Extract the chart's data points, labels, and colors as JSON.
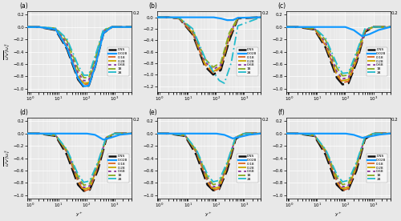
{
  "panels": [
    {
      "label": "(a)",
      "ylim": [
        -1.05,
        0.25
      ]
    },
    {
      "label": "(b)",
      "ylim": [
        -1.3,
        0.1
      ]
    },
    {
      "label": "(c)",
      "ylim": [
        -1.05,
        0.25
      ]
    },
    {
      "label": "(d)",
      "ylim": [
        -1.05,
        0.25
      ]
    },
    {
      "label": "(e)",
      "ylim": [
        -1.05,
        0.25
      ]
    },
    {
      "label": "(f)",
      "ylim": [
        -1.05,
        0.25
      ]
    }
  ],
  "series_labels": [
    "DNS",
    "0.028",
    "0.18",
    "0.28",
    "0.68",
    "18",
    "28"
  ],
  "series_colors": [
    "#111111",
    "#1199ff",
    "#dd6622",
    "#ccaa00",
    "#883399",
    "#88aa22",
    "#22bbcc"
  ],
  "series_styles": [
    "--",
    "-",
    "--",
    "-.",
    ":",
    "--",
    "-."
  ],
  "series_dashes": [
    [
      6,
      2
    ],
    [],
    [
      5,
      2
    ],
    [
      6,
      2,
      2,
      2
    ],
    [
      2,
      2
    ],
    [
      5,
      2
    ],
    [
      6,
      2,
      1,
      2
    ]
  ],
  "series_lw": [
    1.8,
    1.6,
    1.3,
    1.3,
    1.3,
    1.3,
    1.3
  ],
  "xlim": [
    0.8,
    4000
  ],
  "ylabel": "$\\overline{u'v'}/u_\\tau^2$",
  "xlabel": "$y^+$",
  "bg_color": "#e8e8e8",
  "grid_color": "#ffffff",
  "grid_lw": 0.5
}
